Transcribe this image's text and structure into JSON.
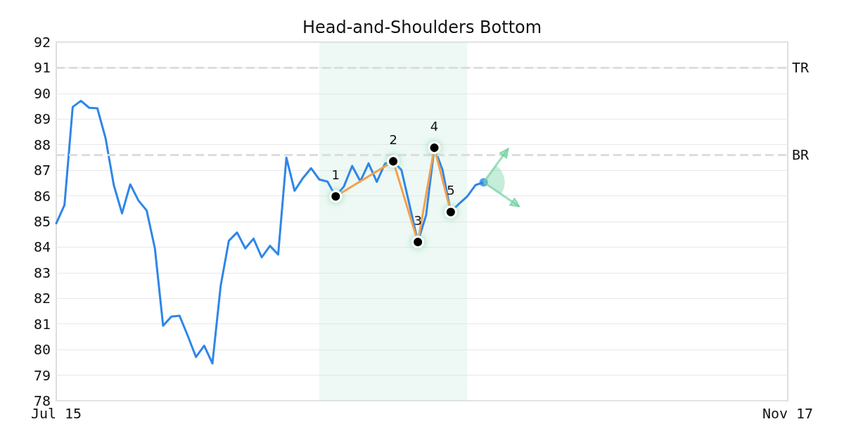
{
  "chart_data": {
    "type": "line",
    "title": "Head-and-Shoulders Bottom",
    "categories": [
      "Jul 15",
      null,
      null,
      null,
      null,
      null,
      null,
      null,
      null,
      null,
      null,
      null,
      null,
      null,
      null,
      null,
      null,
      null,
      null,
      null,
      null,
      null,
      null,
      null,
      null,
      null,
      null,
      null,
      null,
      null,
      null,
      null,
      null,
      null,
      null,
      null,
      null,
      null,
      null,
      null,
      null,
      null,
      null,
      null,
      null,
      null,
      null,
      null,
      null,
      null,
      null,
      null,
      null,
      null,
      null,
      null,
      null,
      null,
      null,
      null,
      null,
      null,
      null,
      null,
      null,
      null,
      null,
      null,
      null,
      null,
      null,
      null,
      null,
      null,
      null,
      null,
      null,
      null,
      null,
      null,
      null,
      null,
      null,
      null,
      null,
      null,
      null,
      null,
      null,
      "Nov 17"
    ],
    "ylim": [
      78,
      92
    ],
    "yticks": [
      78,
      79,
      80,
      81,
      82,
      83,
      84,
      85,
      86,
      87,
      88,
      89,
      90,
      91,
      92
    ],
    "grid": "y",
    "series": [
      {
        "color": "#2e86e8",
        "marker": "none",
        "values": [
          84.93,
          85.64,
          89.47,
          89.71,
          89.44,
          89.42,
          88.25,
          86.42,
          85.32,
          86.45,
          85.82,
          85.43,
          83.95,
          80.93,
          81.29,
          81.32,
          80.54,
          79.71,
          80.15,
          79.46,
          82.48,
          84.25,
          84.57,
          83.95,
          84.33,
          83.6,
          84.05,
          83.71,
          87.49,
          86.2,
          86.69,
          87.08,
          86.64,
          86.56,
          85.98,
          86.37,
          87.17,
          86.57,
          87.27,
          86.55,
          87.26,
          87.35,
          87.01,
          85.62,
          84.2,
          85.25,
          87.88,
          87.01,
          85.37,
          85.69,
          85.98,
          86.42,
          86.53,
          null,
          null,
          null,
          null,
          null,
          null,
          null,
          null,
          null,
          null,
          null,
          null,
          null,
          null,
          null,
          null,
          null,
          null,
          null,
          null,
          null,
          null,
          null,
          null,
          null,
          null,
          null,
          null,
          null,
          null,
          null,
          null,
          null,
          null,
          null,
          null,
          null
        ]
      },
      {
        "type": "line",
        "color": "#f5a04a",
        "marker": "circle",
        "values": [
          null,
          null,
          null,
          null,
          null,
          null,
          null,
          null,
          null,
          null,
          null,
          null,
          null,
          null,
          null,
          null,
          null,
          null,
          null,
          null,
          null,
          null,
          null,
          null,
          null,
          null,
          null,
          null,
          null,
          null,
          null,
          null,
          null,
          null,
          85.98,
          null,
          null,
          null,
          null,
          null,
          null,
          87.35,
          null,
          null,
          84.2,
          null,
          87.88,
          null,
          85.37,
          null,
          null,
          null,
          null,
          null,
          null,
          null,
          null,
          null,
          null,
          null,
          null,
          null,
          null,
          null,
          null,
          null,
          null,
          null,
          null,
          null,
          null,
          null,
          null,
          null,
          null,
          null,
          null,
          null,
          null,
          null,
          null,
          null,
          null,
          null,
          null,
          null,
          null,
          null,
          null,
          null
        ]
      },
      {
        "type": "scatter",
        "color": "#2e86e8",
        "marker": "circle",
        "values": [
          null,
          null,
          null,
          null,
          null,
          null,
          null,
          null,
          null,
          null,
          null,
          null,
          null,
          null,
          null,
          null,
          null,
          null,
          null,
          null,
          null,
          null,
          null,
          null,
          null,
          null,
          null,
          null,
          null,
          null,
          null,
          null,
          null,
          null,
          null,
          null,
          null,
          null,
          null,
          null,
          null,
          null,
          null,
          null,
          null,
          null,
          null,
          null,
          null,
          null,
          null,
          null,
          86.53,
          null,
          null,
          null,
          null,
          null,
          null,
          null,
          null,
          null,
          null,
          null,
          null,
          null,
          null,
          null,
          null,
          null,
          null,
          null,
          null,
          null,
          null,
          null,
          null,
          null,
          null,
          null,
          null,
          null,
          null,
          null,
          null,
          null,
          null,
          null,
          null,
          null
        ]
      }
    ],
    "annotations": [
      "1",
      "2",
      "3",
      "4",
      "5"
    ],
    "ref_lines": [
      {
        "axis": "y",
        "value": 91,
        "label": "TR",
        "color": "#dddddd",
        "line_style": "dashed"
      },
      {
        "axis": "y",
        "value": 87.6,
        "label": "BR",
        "color": "#dddddd",
        "line_style": "dashed"
      }
    ]
  }
}
